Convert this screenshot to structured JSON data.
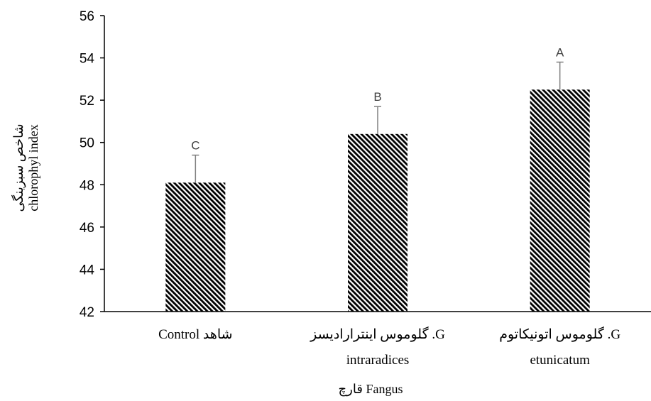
{
  "chart_data": {
    "type": "bar",
    "categories": [
      [
        "Control شاهد"
      ],
      [
        "گلوموس اینترارادیسز .G",
        "intraradices"
      ],
      [
        "گلوموس اتونیکاتوم .G",
        "etunicatum"
      ]
    ],
    "values": [
      48.1,
      50.4,
      52.5
    ],
    "errors": [
      1.3,
      1.3,
      1.3
    ],
    "significance_letters": [
      "C",
      "B",
      "A"
    ],
    "ylabel_lines": [
      "شاخص سبزینگی",
      "chlorophyl index"
    ],
    "xlabel": "قارچ   Fangus",
    "ylim": [
      42,
      56
    ],
    "yticks": [
      42,
      44,
      46,
      48,
      50,
      52,
      54,
      56
    ],
    "grid": false,
    "bar_fill": "diagonal-hatch",
    "bar_color": "#000000",
    "error_bar_color": "#808080"
  }
}
